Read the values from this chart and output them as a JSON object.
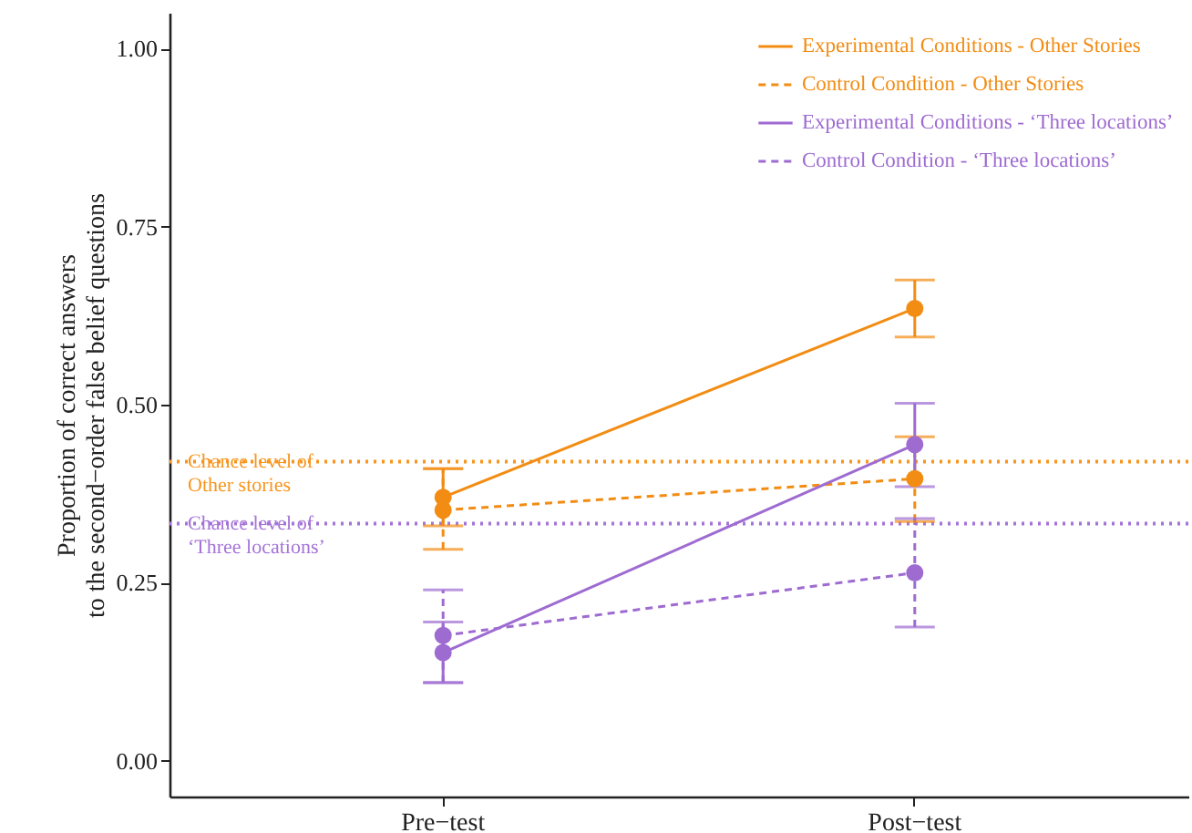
{
  "chart_data": {
    "type": "line",
    "ylabel": "Proportion of correct answers\nto the second−order false belief questions",
    "categories": [
      "Pre−test",
      "Post−test"
    ],
    "ylim": [
      -0.05,
      1.05
    ],
    "yticks": [
      {
        "value": 0,
        "label": "0.00"
      },
      {
        "value": 0.25,
        "label": "0.25"
      },
      {
        "value": 0.5,
        "label": "0.50"
      },
      {
        "value": 0.75,
        "label": "0.75"
      },
      {
        "value": 1,
        "label": "1.00"
      }
    ],
    "grid": false,
    "legend": "top right",
    "marker": "circle",
    "series": [
      {
        "name": "Experimental Conditions - Other Stories",
        "color": "#f28c13",
        "line_style": "solid",
        "values": [
          0.37,
          0.635
        ],
        "errors": [
          [
            0.33,
            0.41
          ],
          [
            0.595,
            0.675
          ]
        ]
      },
      {
        "name": "Control Condition - Other Stories",
        "color": "#f28c13",
        "line_style": "dashed",
        "values": [
          0.352,
          0.396
        ],
        "errors": [
          [
            0.297,
            0.41
          ],
          [
            0.336,
            0.455
          ]
        ]
      },
      {
        "name": "Experimental Conditions - ‘Three locations’",
        "color": "#9e6bd1",
        "line_style": "solid",
        "values": [
          0.152,
          0.444
        ],
        "errors": [
          [
            0.11,
            0.195
          ],
          [
            0.385,
            0.502
          ]
        ]
      },
      {
        "name": "Control Condition - ‘Three locations’",
        "color": "#9e6bd1",
        "line_style": "dashed",
        "values": [
          0.176,
          0.264
        ],
        "errors": [
          [
            0.11,
            0.24
          ],
          [
            0.188,
            0.34
          ]
        ]
      }
    ],
    "ref_lines": [
      {
        "axis": "y",
        "value": 0.42,
        "label": "Chance level of\nOther stories",
        "color": "#f7951d",
        "line_style": "dotted"
      },
      {
        "axis": "y",
        "value": 0.333,
        "label": "Chance level of\n‘Three locations’",
        "color": "#a574d8",
        "line_style": "dotted"
      }
    ]
  }
}
